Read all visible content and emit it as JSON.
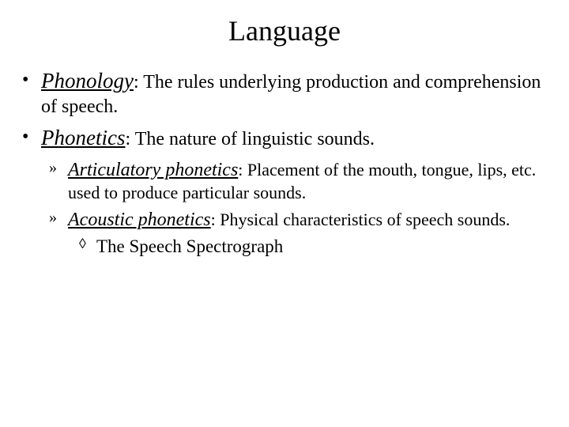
{
  "title": "Language",
  "bullets": [
    {
      "mark": "•",
      "term": "Phonology",
      "def": ": The rules underlying production and comprehension of speech."
    },
    {
      "mark": "•",
      "term": "Phonetics",
      "def": ": The nature of linguistic sounds.",
      "children": [
        {
          "mark": "»",
          "term": "Articulatory phonetics",
          "def": ": Placement of the mouth, tongue, lips, etc. used to produce particular sounds."
        },
        {
          "mark": "»",
          "term": "Acoustic phonetics",
          "def": ": Physical characteristics of speech sounds.",
          "children": [
            {
              "mark": "◊",
              "text": "The Speech Spectrograph"
            }
          ]
        }
      ]
    }
  ],
  "colors": {
    "background": "#ffffff",
    "text": "#000000"
  },
  "fonts": {
    "family": "Times New Roman",
    "title_size_pt": 36,
    "l1_size_pt": 24,
    "l2_size_pt": 22,
    "l3_size_pt": 23
  }
}
